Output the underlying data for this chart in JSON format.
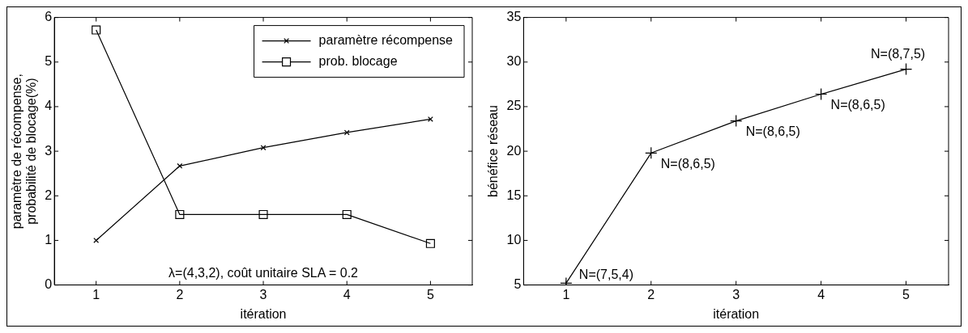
{
  "chart_data": [
    {
      "type": "line",
      "xlabel": "itération",
      "ylabel": "paramètre de récompense,\nprobabilité de blocage(%)",
      "x": [
        1,
        2,
        3,
        4,
        5
      ],
      "xlim": [
        0.5,
        5.5
      ],
      "xticks": [
        1,
        2,
        3,
        4,
        5
      ],
      "ylim": [
        0,
        6
      ],
      "yticks": [
        0,
        1,
        2,
        3,
        4,
        5,
        6
      ],
      "grid": false,
      "legend": "top right",
      "line_style": "solid",
      "series": [
        {
          "name": "paramètre récompense",
          "color": "#000000",
          "marker": "cross",
          "values": [
            1.0,
            2.67,
            3.08,
            3.42,
            3.72
          ]
        },
        {
          "name": "prob. blocage",
          "color": "#000000",
          "marker": "square",
          "values": [
            5.72,
            1.58,
            1.58,
            1.58,
            0.93
          ]
        }
      ],
      "annotations": [
        "λ=(4,3,2), coût unitaire SLA = 0.2"
      ]
    },
    {
      "type": "line",
      "xlabel": "itération",
      "ylabel": "bénéfice réseau",
      "x": [
        1,
        2,
        3,
        4,
        5
      ],
      "xlim": [
        0.5,
        5.5
      ],
      "xticks": [
        1,
        2,
        3,
        4,
        5
      ],
      "ylim": [
        5,
        35
      ],
      "yticks": [
        5,
        10,
        15,
        20,
        25,
        30,
        35
      ],
      "grid": false,
      "line_style": "solid",
      "series": [
        {
          "color": "#000000",
          "marker": "plus",
          "values": [
            5.2,
            19.8,
            23.4,
            26.4,
            29.2
          ]
        }
      ],
      "annotations": [
        {
          "text": "N=(7,5,4)",
          "x": 1,
          "y": 5.2
        },
        {
          "text": "N=(8,6,5)",
          "x": 2,
          "y": 19.8
        },
        {
          "text": "N=(8,6,5)",
          "x": 3,
          "y": 23.4
        },
        {
          "text": "N=(8,6,5)",
          "x": 4,
          "y": 26.4
        },
        {
          "text": "N=(8,7,5)",
          "x": 5,
          "y": 29.2
        }
      ]
    }
  ]
}
